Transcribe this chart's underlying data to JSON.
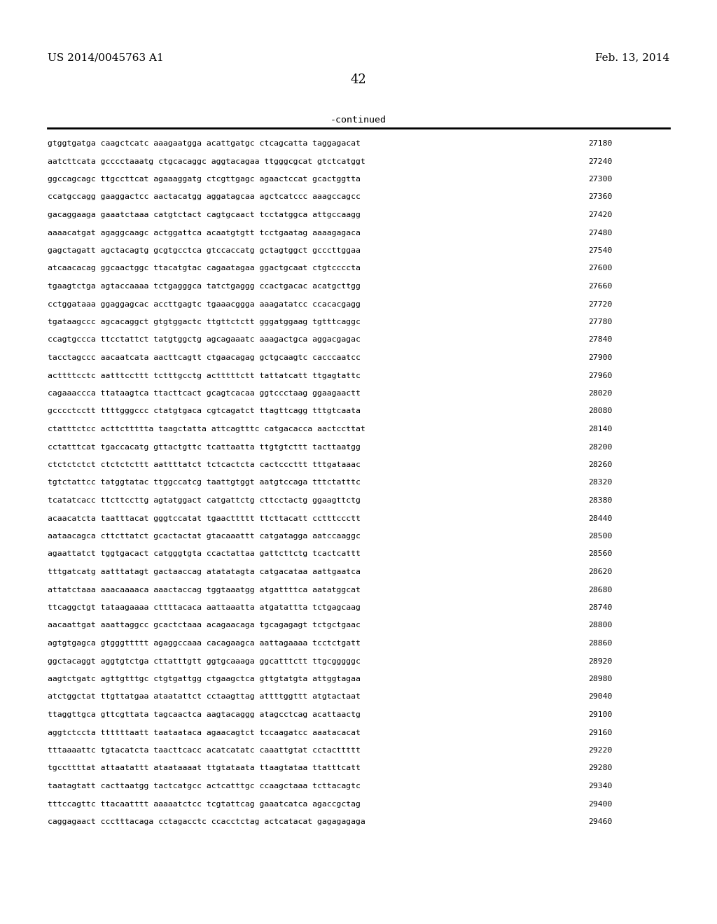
{
  "header_left": "US 2014/0045763 A1",
  "header_right": "Feb. 13, 2014",
  "page_number": "42",
  "continued_label": "-continued",
  "background_color": "#ffffff",
  "text_color": "#000000",
  "sequence_lines": [
    [
      "gtggtgatga caagctcatc aaagaatgga acattgatgc ctcagcatta taggagacat",
      "27180"
    ],
    [
      "aatcttcata gcccctaaatg ctgcacaggc aggtacagaa ttgggcgcat gtctcatggt",
      "27240"
    ],
    [
      "ggccagcagc ttgccttcat agaaaggatg ctcgttgagc agaactccat gcactggtta",
      "27300"
    ],
    [
      "ccatgccagg gaaggactcc aactacatgg aggatagcaa agctcatccc aaagccagcc",
      "27360"
    ],
    [
      "gacaggaaga gaaatctaaa catgtctact cagtgcaact tcctatggca attgccaagg",
      "27420"
    ],
    [
      "aaaacatgat agaggcaagc actggattca acaatgtgtt tcctgaatag aaaagagaca",
      "27480"
    ],
    [
      "gagctagatt agctacagtg gcgtgcctca gtccaccatg gctagtggct gcccttggaa",
      "27540"
    ],
    [
      "atcaacacag ggcaactggc ttacatgtac cagaatagaa ggactgcaat ctgtccccta",
      "27600"
    ],
    [
      "tgaagtctga agtaccaaaa tctgagggca tatctgaggg ccactgacac acatgcttgg",
      "27660"
    ],
    [
      "cctggataaa ggaggagcac accttgagtc tgaaacggga aaagatatcc ccacacgagg",
      "27720"
    ],
    [
      "tgataagccc agcacaggct gtgtggactc ttgttctctt gggatggaag tgtttcaggc",
      "27780"
    ],
    [
      "ccagtgccca ttcctattct tatgtggctg agcagaaatc aaagactgca aggacgagac",
      "27840"
    ],
    [
      "tacctagccc aacaatcata aacttcagtt ctgaacagag gctgcaagtc cacccaatcc",
      "27900"
    ],
    [
      "acttttcctc aatttccttt tctttgcctg actttttctt tattatcatt ttgagtattc",
      "27960"
    ],
    [
      "cagaaaccca ttataagtca ttacttcact gcagtcacaa ggtccctaag ggaagaactt",
      "28020"
    ],
    [
      "gcccctcctt ttttgggccc ctatgtgaca cgtcagatct ttagttcagg tttgtcaata",
      "28080"
    ],
    [
      "ctatttctcc acttcttttta taagctatta attcagtttc catgacacca aactccttat",
      "28140"
    ],
    [
      "cctatttcat tgaccacatg gttactgttc tcattaatta ttgtgtcttt tacttaatgg",
      "28200"
    ],
    [
      "ctctctctct ctctctcttt aattttatct tctcactcta cactcccttt tttgataaac",
      "28260"
    ],
    [
      "tgtctattcc tatggtatac ttggccatcg taattgtggt aatgtccaga tttctatttc",
      "28320"
    ],
    [
      "tcatatcacc ttcttccttg agtatggact catgattctg cttcctactg ggaagttctg",
      "28380"
    ],
    [
      "acaacatcta taatttacat gggtccatat tgaacttttt ttcttacatt cctttccctt",
      "28440"
    ],
    [
      "aataacagca cttcttatct gcactactat gtacaaattt catgatagga aatccaaggc",
      "28500"
    ],
    [
      "agaattatct tggtgacact catgggtgta ccactattaa gattcttctg tcactcattt",
      "28560"
    ],
    [
      "tttgatcatg aatttatagt gactaaccag atatatagta catgacataa aattgaatca",
      "28620"
    ],
    [
      "attatctaaa aaacaaaaca aaactaccag tggtaaatgg atgattttca aatatggcat",
      "28680"
    ],
    [
      "ttcaggctgt tataagaaaa cttttacaca aattaaatta atgatattta tctgagcaag",
      "28740"
    ],
    [
      "aacaattgat aaattaggcc gcactctaaa acagaacaga tgcagagagt tctgctgaac",
      "28800"
    ],
    [
      "agtgtgagca gtgggttttt agaggccaaa cacagaagca aattagaaaa tcctctgatt",
      "28860"
    ],
    [
      "ggctacaggt aggtgtctga cttatttgtt ggtgcaaaga ggcatttctt ttgcgggggc",
      "28920"
    ],
    [
      "aagtctgatc agttgtttgc ctgtgattgg ctgaagctca gttgtatgta attggtagaa",
      "28980"
    ],
    [
      "atctggctat ttgttatgaa ataatattct cctaagttag attttggttt atgtactaat",
      "29040"
    ],
    [
      "ttaggttgca gttcgttata tagcaactca aagtacaggg atagcctcag acattaactg",
      "29100"
    ],
    [
      "aggtctccta ttttttaatt taataataca agaacagtct tccaagatcc aaatacacat",
      "29160"
    ],
    [
      "tttaaaattc tgtacatcta taacttcacc acatcatatc caaattgtat cctacttttt",
      "29220"
    ],
    [
      "tgccttttat attaatattt ataataaaat ttgtataata ttaagtataa ttatttcatt",
      "29280"
    ],
    [
      "taatagtatt cacttaatgg tactcatgcc actcatttgc ccaagctaaa tcttacagtc",
      "29340"
    ],
    [
      "tttccagttc ttacaatttt aaaaatctcc tcgtattcag gaaatcatca agaccgctag",
      "29400"
    ],
    [
      "caggagaact ccctttacaga cctagacctc ccacctctag actcatacat gagagagaga",
      "29460"
    ]
  ]
}
